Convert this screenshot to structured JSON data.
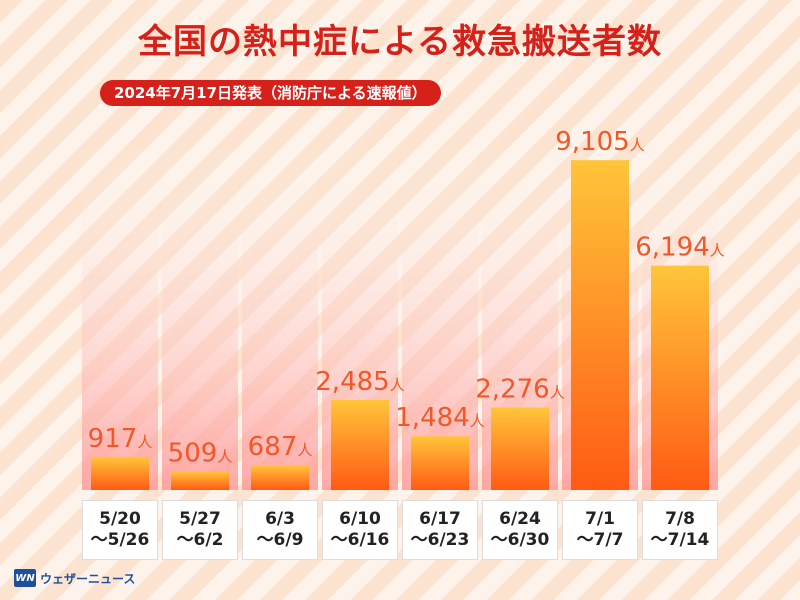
{
  "header": {
    "title": "全国の熱中症による救急搬送者数",
    "subtitle": "2024年7月17日発表（消防庁による速報値）"
  },
  "logo": {
    "mark": "WN",
    "text": "ウェザーニュース"
  },
  "colors": {
    "accent": "#d6201a",
    "bar_top": "#ffc53a",
    "bar_bottom": "#ff5a14",
    "value_label": "#f2572a"
  },
  "chart_data": {
    "type": "bar",
    "title": "全国の熱中症による救急搬送者数",
    "categories": [
      [
        "5/20",
        "～5/26"
      ],
      [
        "5/27",
        "～6/2"
      ],
      [
        "6/3",
        "～6/9"
      ],
      [
        "6/10",
        "～6/16"
      ],
      [
        "6/17",
        "～6/23"
      ],
      [
        "6/24",
        "～6/30"
      ],
      [
        "7/1",
        "～7/7"
      ],
      [
        "7/8",
        "～7/14"
      ]
    ],
    "values": [
      917,
      509,
      687,
      2485,
      1484,
      2276,
      9105,
      6194
    ],
    "value_labels": [
      "917",
      "509",
      "687",
      "2,485",
      "1,484",
      "2,276",
      "9,105",
      "6,194"
    ],
    "unit": "人",
    "ylim": [
      0,
      9800
    ],
    "grid": false,
    "legend": "none"
  }
}
